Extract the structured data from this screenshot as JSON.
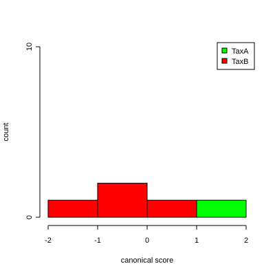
{
  "chart_data": {
    "type": "bar",
    "title": "",
    "xlabel": "canonical score",
    "ylabel": "count",
    "xlim": [
      -2,
      2
    ],
    "ylim": [
      0,
      10
    ],
    "x_ticks": [
      -2,
      -1,
      0,
      1,
      2
    ],
    "y_ticks": [
      0,
      10
    ],
    "grid": false,
    "legend_position": "top-right",
    "series": [
      {
        "name": "TaxA",
        "color": "#00ff00",
        "bins": [
          {
            "x0": 1,
            "x1": 2,
            "count": 1
          }
        ]
      },
      {
        "name": "TaxB",
        "color": "#ff0000",
        "bins": [
          {
            "x0": -2,
            "x1": -1,
            "count": 1
          },
          {
            "x0": -1,
            "x1": 0,
            "count": 2
          },
          {
            "x0": 0,
            "x1": 1,
            "count": 1
          }
        ]
      }
    ]
  }
}
